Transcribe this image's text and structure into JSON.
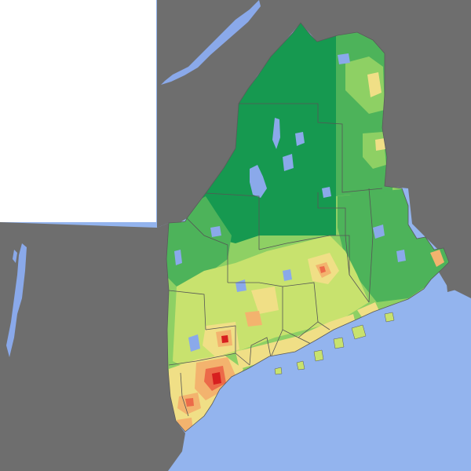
{
  "map": {
    "subject": "population-density-map",
    "colors": {
      "canada": "#ffffff",
      "neighbor_land": "#6e6e6e",
      "ocean": "#93b4ee",
      "lake": "#8aa9ea",
      "county_border": "#555555",
      "density_very_low": "#169950",
      "density_low": "#4db35a",
      "density_medium_low": "#8ed064",
      "density_medium": "#c8e26e",
      "density_medium_high": "#f0df86",
      "density_high": "#f3b36e",
      "density_very_high": "#ec6a49",
      "density_urban": "#d71f1f"
    }
  }
}
